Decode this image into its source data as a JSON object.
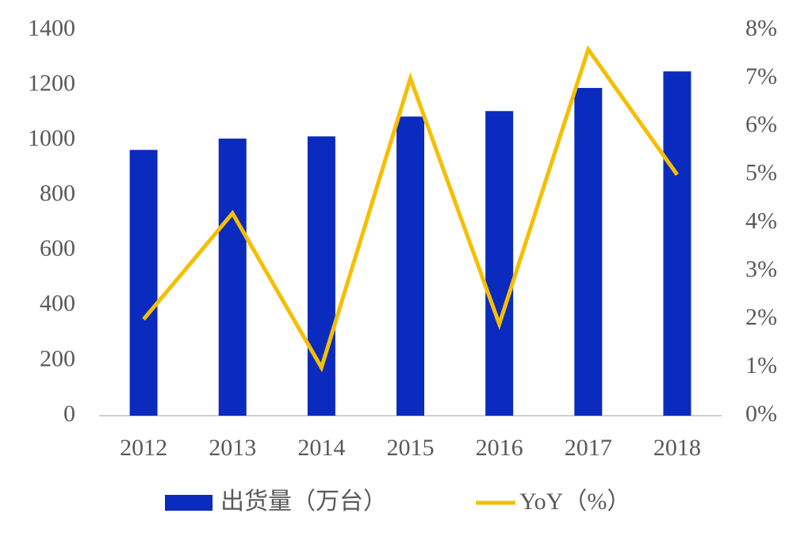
{
  "chart_data": {
    "type": "bar",
    "categories": [
      "2012",
      "2013",
      "2014",
      "2015",
      "2016",
      "2017",
      "2018"
    ],
    "series": [
      {
        "name": "出货量（万台）",
        "type": "bar",
        "color": "#0a2bbd",
        "values": [
          965,
          1006,
          1014,
          1086,
          1106,
          1190,
          1250
        ]
      },
      {
        "name": "YoY（%）",
        "type": "line",
        "axis": "y2",
        "color": "#f5bf00",
        "values": [
          2.0,
          4.2,
          1.0,
          7.0,
          1.9,
          7.6,
          5.0
        ]
      }
    ],
    "ylim": [
      0,
      1400
    ],
    "yticks": [
      0,
      200,
      400,
      600,
      800,
      1000,
      1200,
      1400
    ],
    "y2lim": [
      0,
      8
    ],
    "y2ticks": [
      {
        "value": 0,
        "label": "0%"
      },
      {
        "value": 1,
        "label": "1%"
      },
      {
        "value": 2,
        "label": "2%"
      },
      {
        "value": 3,
        "label": "3%"
      },
      {
        "value": 4,
        "label": "4%"
      },
      {
        "value": 5,
        "label": "5%"
      },
      {
        "value": 6,
        "label": "6%"
      },
      {
        "value": 7,
        "label": "7%"
      },
      {
        "value": 8,
        "label": "8%"
      }
    ],
    "grid": false,
    "legend": "bottom"
  }
}
